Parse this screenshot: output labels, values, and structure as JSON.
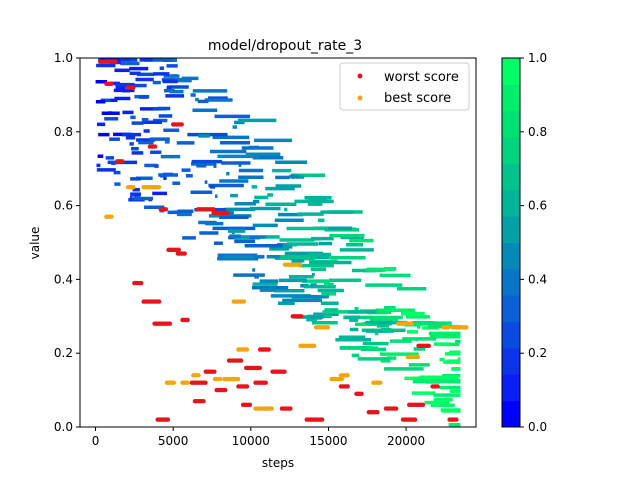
{
  "chart_data": {
    "type": "scatter",
    "title": "model/dropout_rate_3",
    "xlabel": "steps",
    "ylabel": "value",
    "xlim": [
      -1000,
      24500
    ],
    "ylim": [
      0,
      1.0
    ],
    "xticks": [
      0,
      5000,
      10000,
      15000,
      20000
    ],
    "yticks": [
      0.0,
      0.2,
      0.4,
      0.6,
      0.8,
      1.0
    ],
    "grid": false,
    "legend": {
      "placement": "top-right",
      "entries": [
        "worst score",
        "best score"
      ]
    },
    "colorbar": {
      "range": [
        0.0,
        1.0
      ],
      "ticks": [
        "0.0",
        "0.2",
        "0.4",
        "0.6",
        "0.8",
        "1.0"
      ],
      "colors": [
        "#0000ff",
        "#0a1ff6",
        "#0a33ea",
        "#0a4bdf",
        "#0a60d4",
        "#0875c8",
        "#058ab8",
        "#04a0a8",
        "#02b49a",
        "#00c48c",
        "#00d47f",
        "#00e174",
        "#00ee6c",
        "#00ff66"
      ]
    },
    "series": [
      {
        "name": "worst score",
        "color": "#e8141c",
        "points": [
          [
            300,
            0.99
          ],
          [
            700,
            0.93
          ],
          [
            2100,
            0.92
          ],
          [
            1400,
            0.72
          ],
          [
            3500,
            0.76
          ],
          [
            4200,
            0.59
          ],
          [
            5000,
            0.82
          ],
          [
            4700,
            0.48
          ],
          [
            5300,
            0.47
          ],
          [
            5600,
            0.29
          ],
          [
            2500,
            0.39
          ],
          [
            3100,
            0.34
          ],
          [
            3800,
            0.28
          ],
          [
            6600,
            0.59
          ],
          [
            4000,
            0.02
          ],
          [
            7600,
            0.58
          ],
          [
            6200,
            0.12
          ],
          [
            6400,
            0.07
          ],
          [
            7100,
            0.15
          ],
          [
            7800,
            0.1
          ],
          [
            8600,
            0.18
          ],
          [
            9200,
            0.11
          ],
          [
            9500,
            0.06
          ],
          [
            9700,
            0.16
          ],
          [
            10300,
            0.12
          ],
          [
            10600,
            0.21
          ],
          [
            11400,
            0.15
          ],
          [
            12700,
            0.3
          ],
          [
            12000,
            0.05
          ],
          [
            13600,
            0.02
          ],
          [
            15800,
            0.11
          ],
          [
            16800,
            0.09
          ],
          [
            17600,
            0.04
          ],
          [
            18700,
            0.05
          ],
          [
            19800,
            0.02
          ],
          [
            20800,
            0.22
          ],
          [
            21700,
            0.11
          ],
          [
            22800,
            0.02
          ],
          [
            20200,
            0.06
          ]
        ]
      },
      {
        "name": "best score",
        "color": "#f4a50c",
        "points": [
          [
            700,
            0.57
          ],
          [
            2100,
            0.65
          ],
          [
            3100,
            0.65
          ],
          [
            4600,
            0.12
          ],
          [
            5600,
            0.12
          ],
          [
            6300,
            0.14
          ],
          [
            7700,
            0.13
          ],
          [
            8300,
            0.13
          ],
          [
            9200,
            0.21
          ],
          [
            10300,
            0.05
          ],
          [
            10900,
            0.05
          ],
          [
            12200,
            0.44
          ],
          [
            8900,
            0.34
          ],
          [
            13200,
            0.22
          ],
          [
            14200,
            0.27
          ],
          [
            15200,
            0.13
          ],
          [
            15800,
            0.14
          ],
          [
            17900,
            0.12
          ],
          [
            19500,
            0.28
          ],
          [
            20100,
            0.19
          ],
          [
            22400,
            0.27
          ],
          [
            23000,
            0.27
          ]
        ]
      }
    ]
  }
}
